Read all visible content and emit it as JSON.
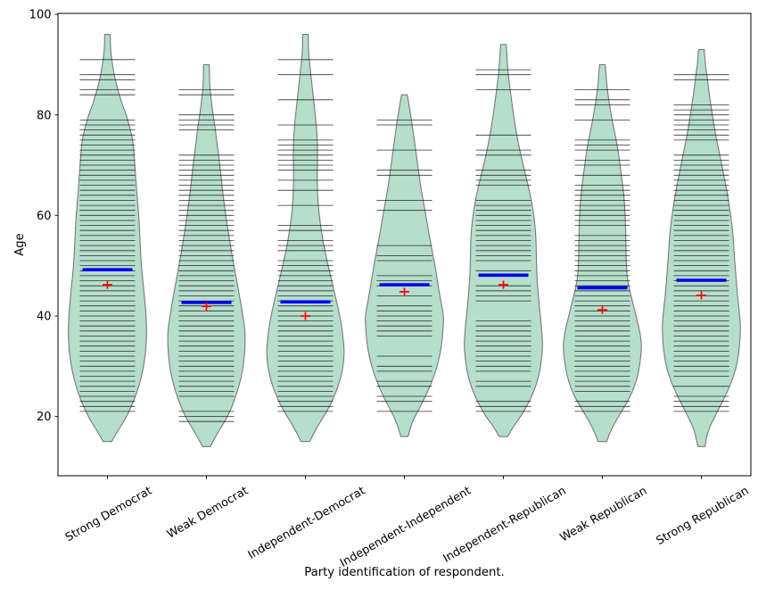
{
  "chart_data": {
    "type": "violin",
    "variant": "beanplot",
    "title": "",
    "xlabel": "Party identification of respondent.",
    "ylabel": "Age",
    "ylim": [
      8.2,
      100.2
    ],
    "yticks": [
      20,
      40,
      60,
      80,
      100
    ],
    "x_tick_label_rotation_deg": 30,
    "grid": false,
    "legend_position": "none",
    "marks": {
      "mean": "thick blue horizontal line",
      "median": "red plus marker",
      "observations": "thin black horizontal lines, one per observed age"
    },
    "colors": {
      "violin_fill": "#b5decb",
      "violin_edge": "#787878",
      "mean_line": "#0000f2",
      "median_marker": "#ff0000",
      "observation_line": "#111111",
      "axis": "#000000",
      "background": "#ffffff"
    },
    "categories": [
      "Strong Democrat",
      "Weak Democrat",
      "Independent-Democrat",
      "Independent-Independent",
      "Independent-Republican",
      "Weak Republican",
      "Strong Republican"
    ],
    "groups": [
      {
        "label": "Strong Democrat",
        "slug": "strong-democrat",
        "mean": 49.2,
        "median": 46.2,
        "violin_range": [
          15,
          96
        ],
        "kde_profile": [
          [
            15,
            0.11
          ],
          [
            17,
            0.25
          ],
          [
            20,
            0.5
          ],
          [
            25,
            0.77
          ],
          [
            30,
            0.93
          ],
          [
            35,
            1.0
          ],
          [
            40,
            0.99
          ],
          [
            45,
            0.93
          ],
          [
            50,
            0.86
          ],
          [
            55,
            0.83
          ],
          [
            60,
            0.8
          ],
          [
            65,
            0.74
          ],
          [
            70,
            0.7
          ],
          [
            75,
            0.65
          ],
          [
            78,
            0.55
          ],
          [
            80,
            0.48
          ],
          [
            82,
            0.38
          ],
          [
            84,
            0.3
          ],
          [
            86,
            0.23
          ],
          [
            88,
            0.17
          ],
          [
            90,
            0.13
          ],
          [
            93,
            0.07
          ],
          [
            96,
            0.03
          ]
        ],
        "observation_ages": [
          21,
          22,
          23,
          24,
          25,
          26,
          27,
          28,
          29,
          30,
          31,
          32,
          33,
          34,
          35,
          36,
          37,
          38,
          39,
          40,
          41,
          42,
          43,
          44,
          45,
          46,
          47,
          48,
          49,
          50,
          51,
          52,
          53,
          54,
          55,
          56,
          57,
          58,
          59,
          60,
          61,
          62,
          63,
          64,
          65,
          66,
          67,
          68,
          69,
          70,
          71,
          72,
          73,
          74,
          75,
          76,
          77,
          78,
          79,
          84,
          85,
          87,
          88,
          91
        ]
      },
      {
        "label": "Weak Democrat",
        "slug": "weak-democrat",
        "mean": 42.7,
        "median": 41.9,
        "violin_range": [
          14,
          90
        ],
        "kde_profile": [
          [
            14,
            0.1
          ],
          [
            17,
            0.3
          ],
          [
            20,
            0.55
          ],
          [
            25,
            0.8
          ],
          [
            30,
            0.95
          ],
          [
            36,
            1.0
          ],
          [
            40,
            0.93
          ],
          [
            45,
            0.82
          ],
          [
            50,
            0.7
          ],
          [
            55,
            0.59
          ],
          [
            60,
            0.49
          ],
          [
            65,
            0.41
          ],
          [
            70,
            0.34
          ],
          [
            73,
            0.29
          ],
          [
            77,
            0.23
          ],
          [
            80,
            0.17
          ],
          [
            83,
            0.12
          ],
          [
            86,
            0.08
          ],
          [
            90,
            0.04
          ]
        ],
        "observation_ages": [
          19,
          20,
          21,
          24,
          25,
          26,
          27,
          28,
          29,
          30,
          31,
          32,
          33,
          34,
          35,
          36,
          37,
          38,
          39,
          40,
          41,
          42,
          43,
          44,
          45,
          46,
          47,
          48,
          49,
          50,
          51,
          52,
          53,
          54,
          55,
          56,
          57,
          58,
          59,
          60,
          61,
          62,
          63,
          64,
          65,
          66,
          67,
          68,
          69,
          70,
          71,
          72,
          77,
          78,
          79,
          80,
          84,
          85
        ]
      },
      {
        "label": "Independent-Democrat",
        "slug": "independent-democrat",
        "mean": 42.8,
        "median": 40.0,
        "violin_range": [
          15,
          96
        ],
        "kde_profile": [
          [
            15,
            0.11
          ],
          [
            18,
            0.3
          ],
          [
            22,
            0.63
          ],
          [
            27,
            0.89
          ],
          [
            32,
            1.0
          ],
          [
            36,
            0.96
          ],
          [
            40,
            0.88
          ],
          [
            45,
            0.73
          ],
          [
            50,
            0.58
          ],
          [
            55,
            0.44
          ],
          [
            60,
            0.35
          ],
          [
            64,
            0.31
          ],
          [
            68,
            0.3
          ],
          [
            72,
            0.31
          ],
          [
            76,
            0.3
          ],
          [
            80,
            0.25
          ],
          [
            85,
            0.18
          ],
          [
            90,
            0.11
          ],
          [
            93,
            0.07
          ],
          [
            96,
            0.03
          ]
        ],
        "observation_ages": [
          21,
          22,
          23,
          24,
          25,
          26,
          27,
          28,
          29,
          30,
          31,
          32,
          33,
          34,
          35,
          36,
          37,
          38,
          39,
          40,
          41,
          42,
          43,
          44,
          45,
          46,
          47,
          48,
          49,
          50,
          51,
          53,
          54,
          55,
          57,
          58,
          62,
          65,
          67,
          69,
          70,
          71,
          72,
          73,
          74,
          75,
          78,
          83,
          88,
          91
        ]
      },
      {
        "label": "Independent-Independent",
        "slug": "independent-independent",
        "mean": 46.2,
        "median": 44.8,
        "violin_range": [
          16,
          84
        ],
        "kde_profile": [
          [
            16,
            0.09
          ],
          [
            19,
            0.2
          ],
          [
            22,
            0.41
          ],
          [
            26,
            0.66
          ],
          [
            30,
            0.84
          ],
          [
            34,
            0.95
          ],
          [
            38,
            0.99
          ],
          [
            40,
            1.0
          ],
          [
            42,
            0.95
          ],
          [
            46,
            0.86
          ],
          [
            50,
            0.78
          ],
          [
            54,
            0.68
          ],
          [
            58,
            0.59
          ],
          [
            62,
            0.5
          ],
          [
            66,
            0.41
          ],
          [
            70,
            0.34
          ],
          [
            74,
            0.27
          ],
          [
            78,
            0.2
          ],
          [
            82,
            0.12
          ],
          [
            84,
            0.07
          ]
        ],
        "observation_ages": [
          21,
          23,
          24,
          26,
          27,
          29,
          30,
          32,
          36,
          37,
          38,
          39,
          40,
          41,
          42,
          44,
          46,
          47,
          48,
          51,
          52,
          54,
          61,
          63,
          68,
          69,
          73,
          78,
          79
        ]
      },
      {
        "label": "Independent-Republican",
        "slug": "independent-republican",
        "mean": 48.1,
        "median": 46.2,
        "violin_range": [
          16,
          94
        ],
        "kde_profile": [
          [
            16,
            0.11
          ],
          [
            18,
            0.25
          ],
          [
            20,
            0.45
          ],
          [
            24,
            0.73
          ],
          [
            28,
            0.91
          ],
          [
            33,
            1.0
          ],
          [
            36,
            0.99
          ],
          [
            40,
            0.94
          ],
          [
            44,
            0.89
          ],
          [
            48,
            0.85
          ],
          [
            52,
            0.84
          ],
          [
            56,
            0.83
          ],
          [
            60,
            0.78
          ],
          [
            64,
            0.69
          ],
          [
            68,
            0.57
          ],
          [
            72,
            0.44
          ],
          [
            76,
            0.34
          ],
          [
            80,
            0.26
          ],
          [
            85,
            0.17
          ],
          [
            90,
            0.1
          ],
          [
            94,
            0.04
          ]
        ],
        "observation_ages": [
          21,
          22,
          23,
          26,
          27,
          29,
          30,
          31,
          32,
          33,
          34,
          35,
          36,
          37,
          38,
          39,
          43,
          44,
          45,
          46,
          49,
          51,
          52,
          53,
          54,
          55,
          56,
          57,
          58,
          59,
          60,
          61,
          62,
          63,
          66,
          67,
          68,
          69,
          72,
          73,
          76,
          85,
          88,
          89
        ]
      },
      {
        "label": "Weak Republican",
        "slug": "weak-republican",
        "mean": 45.6,
        "median": 41.2,
        "violin_range": [
          15,
          90
        ],
        "kde_profile": [
          [
            15,
            0.11
          ],
          [
            17,
            0.2
          ],
          [
            20,
            0.41
          ],
          [
            24,
            0.72
          ],
          [
            28,
            0.91
          ],
          [
            33,
            1.0
          ],
          [
            36,
            0.98
          ],
          [
            40,
            0.86
          ],
          [
            44,
            0.73
          ],
          [
            47,
            0.64
          ],
          [
            50,
            0.61
          ],
          [
            54,
            0.6
          ],
          [
            58,
            0.59
          ],
          [
            62,
            0.57
          ],
          [
            66,
            0.52
          ],
          [
            70,
            0.45
          ],
          [
            74,
            0.38
          ],
          [
            78,
            0.27
          ],
          [
            82,
            0.18
          ],
          [
            86,
            0.11
          ],
          [
            90,
            0.05
          ]
        ],
        "observation_ages": [
          21,
          22,
          23,
          25,
          26,
          27,
          28,
          29,
          30,
          31,
          32,
          33,
          34,
          35,
          36,
          37,
          38,
          39,
          40,
          41,
          42,
          43,
          44,
          45,
          46,
          47,
          48,
          49,
          50,
          51,
          52,
          53,
          54,
          55,
          56,
          58,
          59,
          60,
          61,
          62,
          63,
          64,
          65,
          66,
          68,
          70,
          71,
          73,
          74,
          75,
          79,
          82,
          83,
          85
        ]
      },
      {
        "label": "Strong Republican",
        "slug": "strong-republican",
        "mean": 47.1,
        "median": 44.1,
        "violin_range": [
          14,
          93
        ],
        "kde_profile": [
          [
            14,
            0.09
          ],
          [
            17,
            0.16
          ],
          [
            20,
            0.34
          ],
          [
            24,
            0.61
          ],
          [
            28,
            0.83
          ],
          [
            32,
            0.95
          ],
          [
            37,
            1.0
          ],
          [
            40,
            0.98
          ],
          [
            44,
            0.92
          ],
          [
            48,
            0.88
          ],
          [
            52,
            0.84
          ],
          [
            56,
            0.81
          ],
          [
            60,
            0.75
          ],
          [
            64,
            0.67
          ],
          [
            68,
            0.57
          ],
          [
            72,
            0.47
          ],
          [
            76,
            0.36
          ],
          [
            80,
            0.28
          ],
          [
            84,
            0.2
          ],
          [
            88,
            0.14
          ],
          [
            90,
            0.1
          ],
          [
            93,
            0.04
          ]
        ],
        "observation_ages": [
          21,
          22,
          23,
          24,
          26,
          28,
          29,
          30,
          31,
          32,
          33,
          34,
          35,
          36,
          37,
          38,
          39,
          40,
          41,
          42,
          43,
          44,
          45,
          46,
          47,
          48,
          49,
          50,
          51,
          52,
          53,
          54,
          55,
          56,
          57,
          58,
          59,
          60,
          61,
          62,
          63,
          64,
          65,
          66,
          67,
          68,
          69,
          70,
          71,
          72,
          75,
          76,
          77,
          78,
          79,
          80,
          81,
          82,
          87,
          88
        ]
      }
    ]
  }
}
